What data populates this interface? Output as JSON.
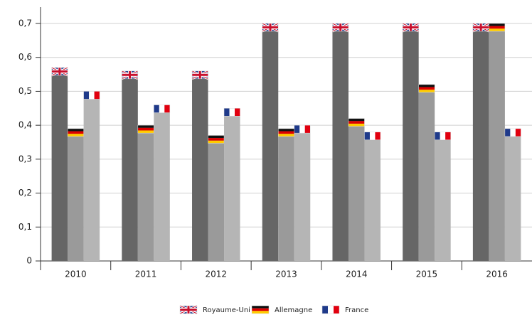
{
  "chart_data": {
    "type": "bar",
    "categories": [
      "2010",
      "2011",
      "2012",
      "2013",
      "2014",
      "2015",
      "2016"
    ],
    "series": [
      {
        "name": "Royaume-Uni",
        "color": "#666666",
        "values": [
          0.57,
          0.56,
          0.56,
          0.7,
          0.7,
          0.7,
          0.7
        ]
      },
      {
        "name": "Allemagne",
        "color": "#9a9a9a",
        "values": [
          0.39,
          0.4,
          0.37,
          0.39,
          0.42,
          0.52,
          0.7
        ]
      },
      {
        "name": "France",
        "color": "#b5b5b5",
        "values": [
          0.5,
          0.46,
          0.45,
          0.4,
          0.38,
          0.38,
          0.39
        ]
      }
    ],
    "ylim": [
      0,
      0.7
    ],
    "yticks": [
      0,
      {
        "value": 0.1,
        "label": "0,1"
      },
      {
        "value": 0.2,
        "label": "0,2"
      },
      {
        "value": 0.3,
        "label": "0,3"
      },
      {
        "value": 0.4,
        "label": "0,4"
      },
      {
        "value": 0.5,
        "label": "0,5"
      },
      {
        "value": 0.6,
        "label": "0,6"
      },
      {
        "value": 0.7,
        "label": "0,7"
      }
    ],
    "grid": true
  }
}
